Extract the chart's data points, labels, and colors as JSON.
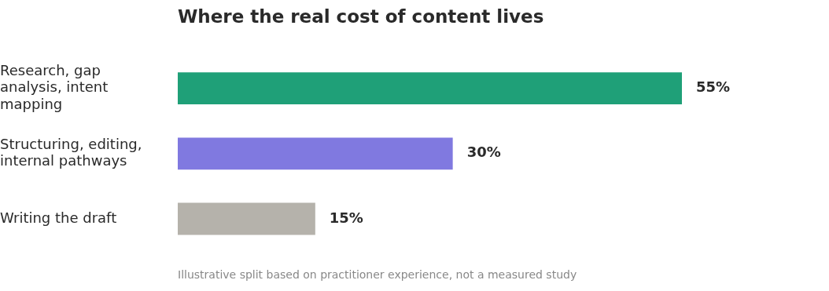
{
  "chart_data": {
    "type": "bar",
    "orientation": "horizontal",
    "title": "Where the real cost of content lives",
    "categories": [
      "Research, gap analysis, intent mapping",
      "Structuring, editing, internal pathways",
      "Writing the draft"
    ],
    "values": [
      55,
      30,
      15
    ],
    "colors": [
      "#1fa078",
      "#8079e0",
      "#b5b2ab"
    ],
    "value_labels": [
      "55%",
      "30%",
      "15%"
    ],
    "annotations": [
      "Illustrative split based on practitioner experience, not a measured study"
    ]
  }
}
